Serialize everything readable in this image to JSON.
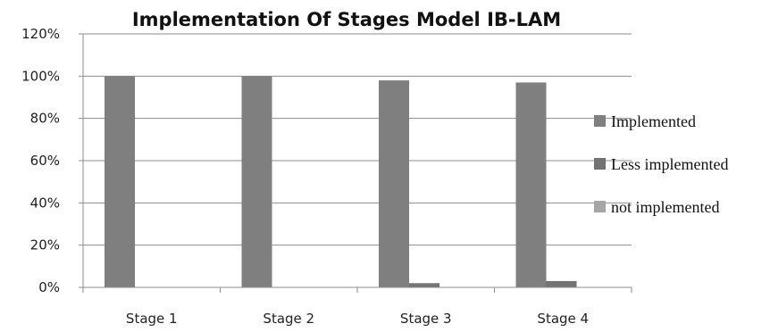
{
  "chart_data": {
    "type": "bar",
    "title": "Implementation Of Stages Model IB-LAM",
    "xlabel": "",
    "ylabel": "",
    "categories": [
      "Stage 1",
      "Stage 2",
      "Stage 3",
      "Stage 4"
    ],
    "series": [
      {
        "name": "Implemented",
        "values": [
          100,
          100,
          98,
          97
        ],
        "color": "#7f7f7f"
      },
      {
        "name": "Less implemented",
        "values": [
          0,
          0,
          2,
          3
        ],
        "color": "#737373"
      },
      {
        "name": "not implemented",
        "values": [
          0,
          0,
          0,
          0
        ],
        "color": "#a6a6a6"
      }
    ],
    "ylim": [
      0,
      120
    ],
    "yticks": [
      0,
      20,
      40,
      60,
      80,
      100,
      120
    ],
    "ytick_labels": [
      "0%",
      "20%",
      "40%",
      "60%",
      "80%",
      "100%",
      "120%"
    ],
    "grid": true,
    "legend_position": "right"
  }
}
